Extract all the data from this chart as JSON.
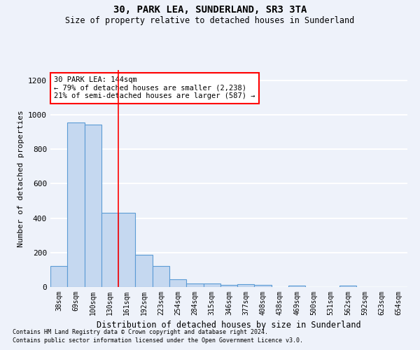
{
  "title": "30, PARK LEA, SUNDERLAND, SR3 3TA",
  "subtitle": "Size of property relative to detached houses in Sunderland",
  "xlabel": "Distribution of detached houses by size in Sunderland",
  "ylabel": "Number of detached properties",
  "categories": [
    "38sqm",
    "69sqm",
    "100sqm",
    "130sqm",
    "161sqm",
    "192sqm",
    "223sqm",
    "254sqm",
    "284sqm",
    "315sqm",
    "346sqm",
    "377sqm",
    "408sqm",
    "438sqm",
    "469sqm",
    "500sqm",
    "531sqm",
    "562sqm",
    "592sqm",
    "623sqm",
    "654sqm"
  ],
  "values": [
    120,
    955,
    945,
    430,
    430,
    185,
    120,
    45,
    20,
    20,
    13,
    15,
    13,
    0,
    8,
    0,
    0,
    8,
    0,
    0,
    0
  ],
  "bar_color": "#c5d8f0",
  "bar_edge_color": "#5b9bd5",
  "background_color": "#eef2fa",
  "grid_color": "#ffffff",
  "red_line_x": 3.5,
  "annotation_text": "30 PARK LEA: 144sqm\n← 79% of detached houses are smaller (2,238)\n21% of semi-detached houses are larger (587) →",
  "annotation_box_color": "white",
  "annotation_box_edge": "red",
  "footer1": "Contains HM Land Registry data © Crown copyright and database right 2024.",
  "footer2": "Contains public sector information licensed under the Open Government Licence v3.0.",
  "ylim": [
    0,
    1260
  ],
  "yticks": [
    0,
    200,
    400,
    600,
    800,
    1000,
    1200
  ]
}
